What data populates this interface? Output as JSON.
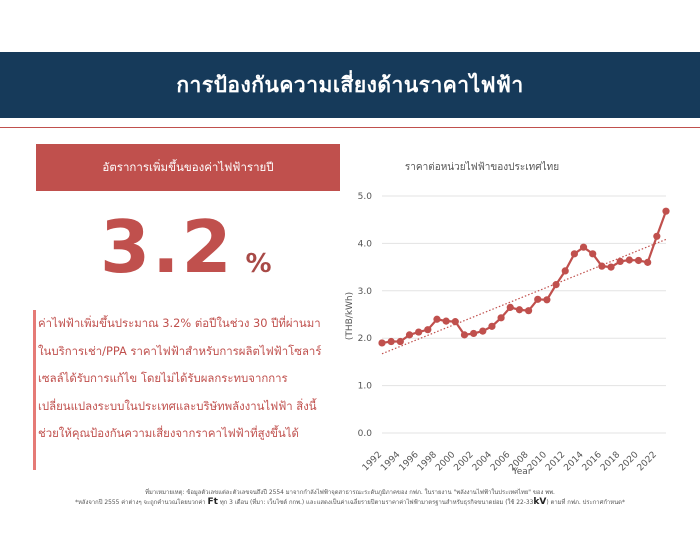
{
  "header": {
    "title": "การป้องกันความเสี่ยงด้านราคาไฟฟ้า"
  },
  "summary": {
    "label": "อัตราการเพิ่มขึ้นของค่าไฟฟ้ารายปี",
    "big_value": "3.2",
    "big_unit": "%",
    "description_lines": [
      "ค่าไฟฟ้าเพิ่มขึ้นประมาณ 3.2% ต่อปีในช่วง 30 ปีที่ผ่านมา",
      "ในบริการเช่า/PPA ราคาไฟฟ้าสำหรับการผลิตไฟฟ้าโซลาร์",
      "เซลล์ได้รับการแก้ไข โดยไม่ได้รับผลกระทบจากการ",
      "เปลี่ยนแปลงระบบในประเทศและบริษัทพลังงานไฟฟ้า สิ่งนี้",
      "ช่วยให้คุณป้องกันความเสี่ยงจากราคาไฟฟ้าที่สูงขึ้นได้"
    ]
  },
  "chart_data": {
    "type": "line",
    "title": "ราคาต่อหน่วยไฟฟ้าของประเทศไทย",
    "xlabel": "Year",
    "ylabel": "(THB/kWh)",
    "ylim": [
      0,
      5
    ],
    "yticks": [
      "0.0",
      "1.0",
      "2.0",
      "3.0",
      "4.0",
      "5.0"
    ],
    "xticks": [
      "1992",
      "1994",
      "1996",
      "1998",
      "2000",
      "2002",
      "2004",
      "2006",
      "2008",
      "2010",
      "2012",
      "2014",
      "2016",
      "2018",
      "2020",
      "2022"
    ],
    "grid": true,
    "trendline": true,
    "series": [
      {
        "color": "#c0504d",
        "x": [
          1992,
          1993,
          1994,
          1995,
          1996,
          1997,
          1998,
          1999,
          2000,
          2001,
          2002,
          2003,
          2004,
          2005,
          2006,
          2007,
          2008,
          2009,
          2010,
          2011,
          2012,
          2013,
          2014,
          2015,
          2016,
          2017,
          2018,
          2019,
          2020,
          2021,
          2022,
          2023
        ],
        "y": [
          1.9,
          1.93,
          1.93,
          2.07,
          2.13,
          2.18,
          2.4,
          2.36,
          2.35,
          2.07,
          2.1,
          2.15,
          2.25,
          2.43,
          2.65,
          2.6,
          2.58,
          2.82,
          2.81,
          3.13,
          3.42,
          3.78,
          3.92,
          3.78,
          3.52,
          3.5,
          3.62,
          3.65,
          3.64,
          3.6,
          4.15,
          4.68
        ]
      }
    ]
  },
  "footnotes": {
    "line1": "ที่มาเหมายเหตุ: ข้อมูลตัวเลขแต่ละตัวเลขจนถึงปี 2554 มาจากกำลังไฟฟ้าจุดสาธารณะระดับภูมิภาคของ กฟภ. ในรายงาน \"พลังงานไฟฟ้าในประเทศไทย\" ของ พพ.",
    "line2_pre": "*หลังจากปี 2555 ค่าต่างๆ จะถูกคำนวณโดยบวกค่า",
    "line2_ft": "Ft",
    "line2_mid": "ทุก 3 เดือน (ที่มา: เว็บไซต์ กกพ.) และแสดงเป็นค่าเฉลี่ยรายปีตามราคาค่าไฟฟ้ามาตรฐานสำหรับธุรกิจขนาดย่อม (ใช้ 22-33",
    "line2_kv": "kV",
    "line2_post": ") ตามที่ กฟภ. ประกาศกำหนด*"
  }
}
